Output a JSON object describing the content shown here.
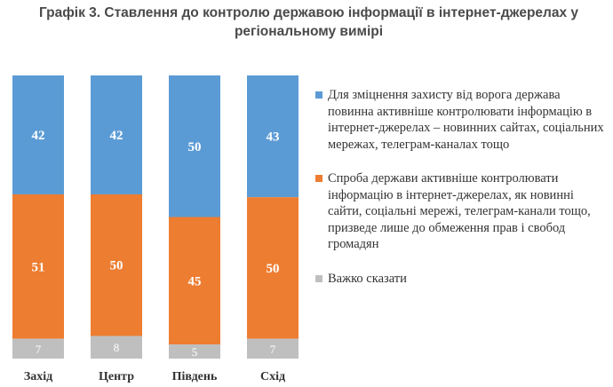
{
  "chart_data": {
    "type": "bar",
    "stacked": true,
    "title": "Графік 3. Ставлення до контролю державою інформації в інтернет-джерелах у регіональному вимірі",
    "categories": [
      "Захід",
      "Центр",
      "Південь",
      "Схід"
    ],
    "series": [
      {
        "name": "Для зміцнення захисту від ворога держава повинна активніше контролювати інформацію в інтернет-джерелах – новинних сайтах, соціальних мережах, телеграм-каналах тощо",
        "color": "#5b9bd5",
        "values": [
          42,
          42,
          50,
          43
        ]
      },
      {
        "name": "Спроба держави активніше контролювати інформацію в інтернет-джерелах, як новинні сайти, соціальні мережі, телеграм-канали тощо, призведе лише до обмеження прав і свобод громадян",
        "color": "#ed7d31",
        "values": [
          51,
          50,
          45,
          50
        ]
      },
      {
        "name": "Важко сказати",
        "color": "#bfbfbf",
        "values": [
          7,
          8,
          5,
          7
        ]
      }
    ],
    "ylim": [
      0,
      100
    ],
    "xlabel": "",
    "ylabel": "",
    "legend": "right",
    "grid": false
  }
}
